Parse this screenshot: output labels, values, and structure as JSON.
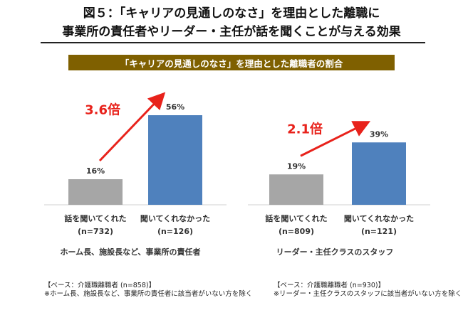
{
  "header": {
    "line1": "図５：「キャリアの見通しのなさ」を理由とした離職に",
    "line2": "事業所の責任者やリーダー・主任が話を聞くことが与える効果",
    "banner": "「キャリアの見通しのなさ」を理由とした離職者の割合"
  },
  "colors": {
    "bar_heard": "#a6a6a6",
    "bar_not_heard": "#4f81bd",
    "arrow": "#e8221b",
    "banner": "#7f6000"
  },
  "chart_data": [
    {
      "type": "bar",
      "group_label": "ホーム長、施設長など、事業所の責任者",
      "categories": [
        "話を聞いてくれた",
        "聞いてくれなかった"
      ],
      "counts": [
        "(n=732)",
        "(n=126)"
      ],
      "values": [
        16,
        56
      ],
      "value_labels": [
        "16%",
        "56%"
      ],
      "ratio_label": "3.6倍",
      "ylim": [
        0,
        60
      ]
    },
    {
      "type": "bar",
      "group_label": "リーダー・主任クラスのスタッフ",
      "categories": [
        "話を聞いてくれた",
        "聞いてくれなかった"
      ],
      "counts": [
        "(n=809)",
        "(n=121)"
      ],
      "values": [
        19,
        39
      ],
      "value_labels": [
        "19%",
        "39%"
      ],
      "ratio_label": "2.1倍",
      "ylim": [
        0,
        60
      ]
    }
  ],
  "notes": [
    {
      "base": "【ベース：介護職離職者 (n=858)】",
      "exclude": "※ホーム長、施設長など、事業所の責任者に該当者がいない方を除く"
    },
    {
      "base": "【ベース：介護職離職者 (n=930)】",
      "exclude": "※リーダー・主任クラスのスタッフに該当者がいない方を除く"
    }
  ]
}
